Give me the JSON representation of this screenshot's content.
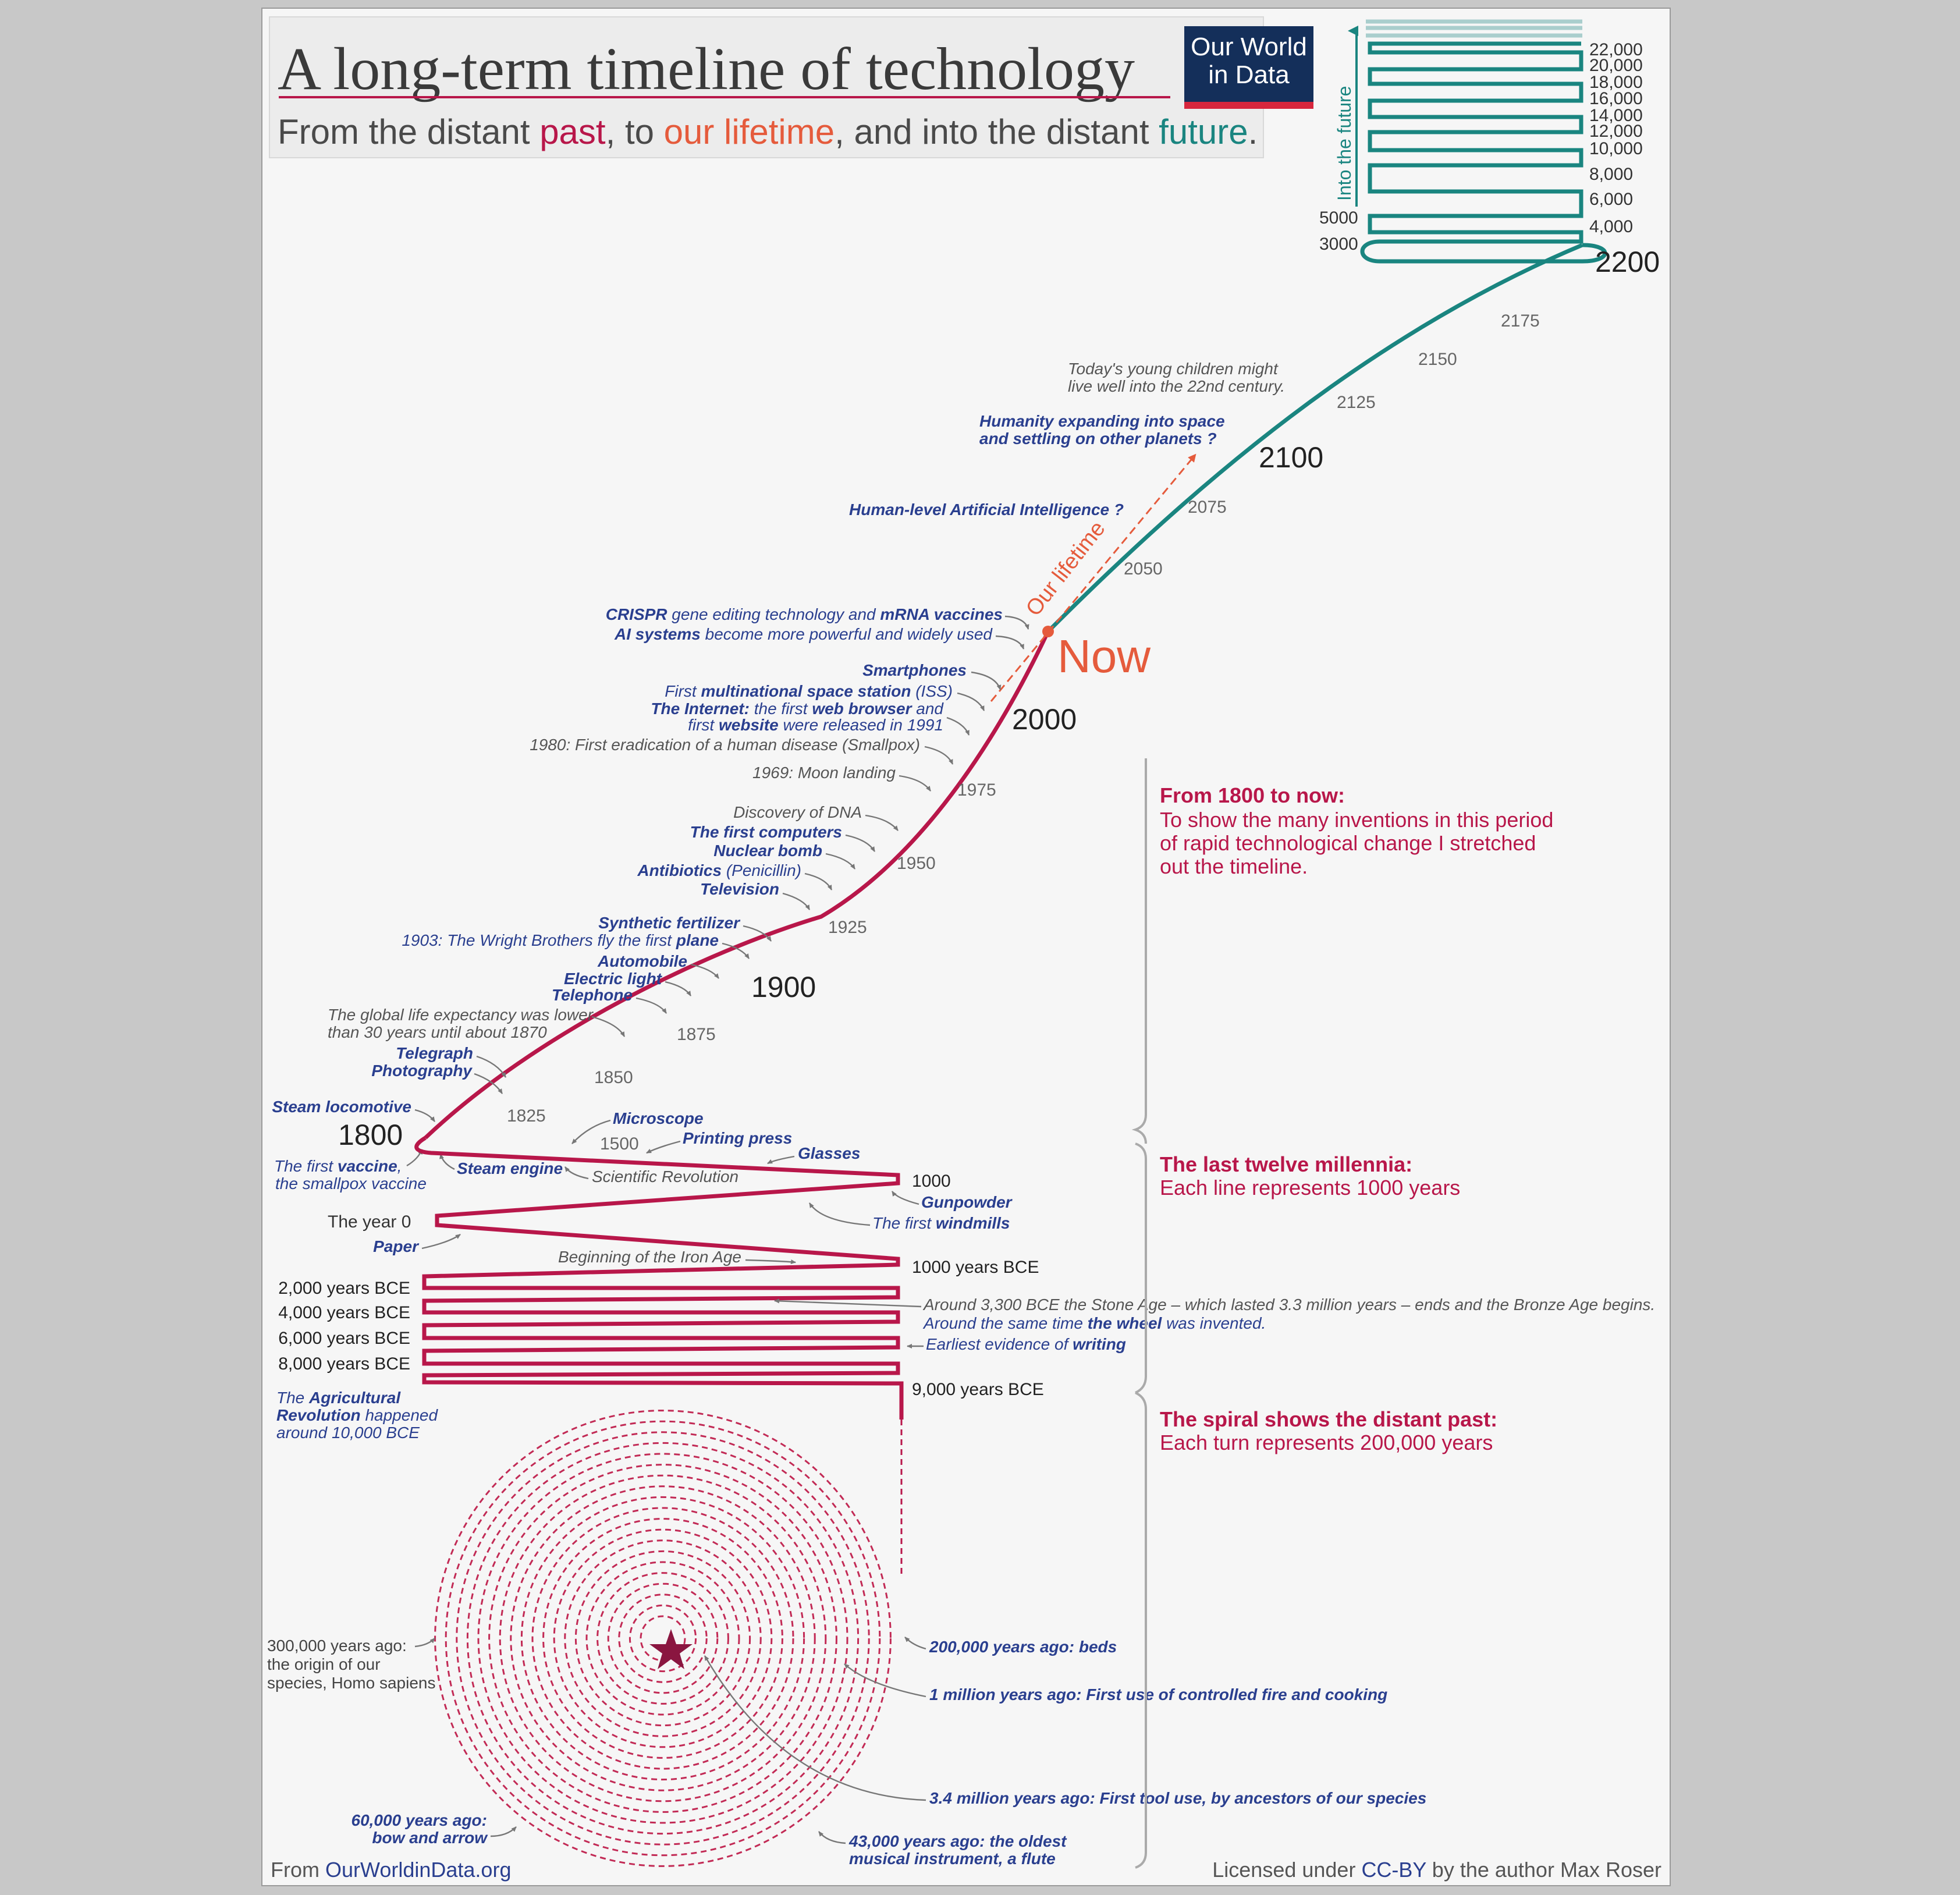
{
  "title": "A long-term timeline of technology",
  "subtitle": {
    "part1": "From the distant ",
    "past": "past",
    "part2": ", to ",
    "lifetime": "our lifetime",
    "part3": ", and into the distant ",
    "future": "future",
    "part4": "."
  },
  "logo": {
    "line1": "Our World",
    "line2": "in Data"
  },
  "colors": {
    "past": "#b8174a",
    "lifetime": "#e55b3c",
    "future": "#1a8580",
    "annotation": "#2a3f8f",
    "logo_bg": "#142f5a"
  },
  "future_axis_label": "Into the future",
  "future_ticks": [
    "22,000",
    "20,000",
    "18,000",
    "16,000",
    "14,000",
    "12,000",
    "10,000",
    "8,000",
    "6,000",
    "4,000"
  ],
  "future_left_ticks": [
    "5000",
    "3000"
  ],
  "big_years": {
    "y2200": "2200",
    "y2100": "2100",
    "y2000": "2000",
    "y1900": "1900",
    "y1800": "1800",
    "now": "Now"
  },
  "small_ticks": [
    "2175",
    "2150",
    "2125",
    "2075",
    "2050",
    "1975",
    "1950",
    "1925",
    "1875",
    "1850",
    "1825",
    "1500"
  ],
  "lifetime_label": "Our lifetime",
  "future_notes": {
    "children": [
      "Today's young children might",
      "live well into the 22nd century."
    ],
    "space": [
      "Humanity expanding into space",
      "and settling on other planets ?"
    ],
    "ai": "Human-level Artificial Intelligence ?"
  },
  "modern": {
    "crispr": {
      "a": "CRISPR",
      "b": " gene editing technology and ",
      "c": "mRNA vaccines"
    },
    "ai_systems": {
      "a": "AI systems",
      "b": " become more powerful and widely used"
    },
    "smartphones": "Smartphones",
    "iss": {
      "a": "First ",
      "b": "multinational space station",
      "c": " (ISS)"
    },
    "internet1": {
      "a": "The Internet:",
      "b": " the first ",
      "c": "web browser",
      "d": " and"
    },
    "internet2": {
      "a": "first ",
      "b": "website",
      "c": " were released in 1991"
    },
    "smallpox": "1980: First eradication of a human disease (Smallpox)",
    "moon": "1969: Moon landing",
    "dna": "Discovery of DNA",
    "computers": "The first computers",
    "nuclear": "Nuclear bomb",
    "antibiotics": {
      "a": "Antibiotics",
      "b": " (Penicillin)"
    },
    "television": "Television",
    "fertilizer": "Synthetic fertilizer",
    "wright": {
      "a": "1903: The Wright Brothers fly the first ",
      "b": "plane"
    },
    "automobile": "Automobile",
    "electric": "Electric light",
    "telephone": "Telephone",
    "life_exp": [
      "The global life expectancy was lower",
      "than 30 years until about 1870"
    ],
    "telegraph": "Telegraph",
    "photography": "Photography",
    "steam_loco": "Steam locomotive",
    "vaccine1": {
      "a": "The first ",
      "b": "vaccine",
      "c": ","
    },
    "vaccine2": "the smallpox vaccine",
    "steam_engine": "Steam engine"
  },
  "millennia": {
    "microscope": "Microscope",
    "printing": "Printing press",
    "glasses": "Glasses",
    "sci_rev": "Scientific Revolution",
    "y1000": "1000",
    "gunpowder": "Gunpowder",
    "windmills": {
      "a": "The first ",
      "b": "windmills"
    },
    "year0": "The year 0",
    "paper": "Paper",
    "iron": "Beginning of the Iron Age",
    "bce1000": "1000 years BCE",
    "bce2000": "2,000 years BCE",
    "bce4000": "4,000 years BCE",
    "bce6000": "6,000 years BCE",
    "bce8000": "8,000 years BCE",
    "bce9000": "9,000 years BCE",
    "bronze1": "Around 3,300 BCE the Stone Age – which lasted 3.3 million years – ends and the Bronze Age begins.",
    "wheel": {
      "a": "Around the same time ",
      "b": "the wheel",
      "c": " was invented."
    },
    "writing": {
      "a": "Earliest evidence of ",
      "b": "writing"
    },
    "agri1": {
      "a": "The ",
      "b": "Agricultural"
    },
    "agri2": {
      "a": "Revolution",
      "b": " happened"
    },
    "agri3": "around 10,000 BCE"
  },
  "spiral_notes": {
    "sapiens": [
      "300,000 years ago:",
      "the origin of our",
      "species, Homo sapiens"
    ],
    "beds": "200,000 years ago: beds",
    "fire": "1 million years ago: First use of controlled fire and cooking",
    "tools": "3.4 million years ago: First tool use, by ancestors of our species",
    "bow": [
      "60,000 years ago:",
      "bow and arrow"
    ],
    "flute": [
      "43,000 years ago: the oldest",
      "musical instrument, a flute"
    ]
  },
  "sections": {
    "s1": {
      "title": "From 1800 to now:",
      "lines": [
        "To show the many inventions in this period",
        "of rapid technological change I stretched",
        "out the timeline."
      ]
    },
    "s2": {
      "title": "The last twelve millennia:",
      "lines": [
        "Each line represents 1000 years"
      ]
    },
    "s3": {
      "title": "The spiral shows the distant past:",
      "lines": [
        "Each turn represents 200,000 years"
      ]
    }
  },
  "footer": {
    "from": "From ",
    "site": "OurWorldinData.org",
    "license_a": "Licensed under ",
    "license_b": "CC-BY",
    "license_c": " by the author Max Roser"
  }
}
